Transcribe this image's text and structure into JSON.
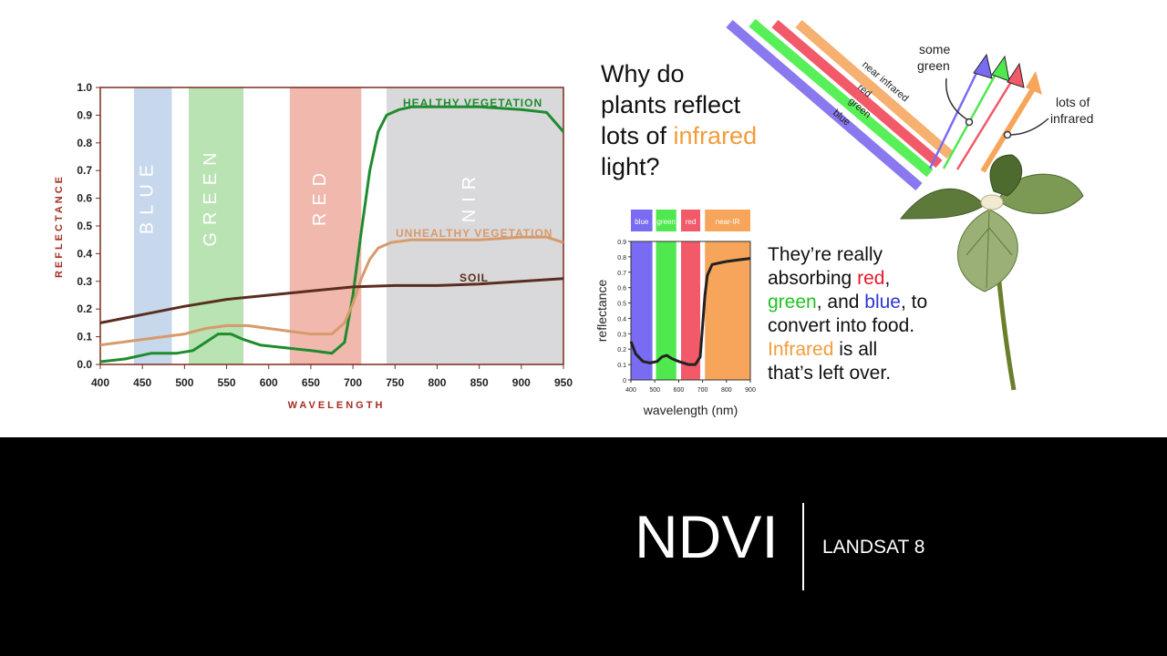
{
  "slide": {
    "title": "NDVI",
    "subtitle": "LANDSAT 8"
  },
  "question": {
    "line1": "Why do",
    "line2": "plants reflect",
    "line3_prefix": "lots of ",
    "line3_highlight": "infrared",
    "line4": "light?"
  },
  "answer": {
    "line1": "They’re really",
    "line2_prefix": "absorbing ",
    "line2_red": "red",
    "line2_suffix": ",",
    "line3_green": "green",
    "line3_mid": ", and ",
    "line3_blue": "blue",
    "line3_suffix": ", to",
    "line4": "convert into food.",
    "line5_infrared": "Infrared",
    "line5_suffix": " is all",
    "line6": "that’s left over."
  },
  "illustration": {
    "beam_labels": [
      "blue",
      "green",
      "red",
      "near infrared"
    ],
    "label_some_green": [
      "some",
      "green"
    ],
    "label_lots_infrared": [
      "lots of",
      "infrared"
    ]
  },
  "colors": {
    "blue_band": "#c7d8ec",
    "green_band": "#b9e3b3",
    "red_band": "#f1b8ad",
    "nir_band": "#d9d9db",
    "healthy": "#1e8c2e",
    "unhealthy": "#d79a6b",
    "soil": "#5a2e1e",
    "axis": "#7a2a1e",
    "label_red": "#a32e20",
    "infrared_orange": "#f39c3a",
    "red_word": "#e8192c",
    "green_word": "#22c322",
    "blue_word": "#2b35d8"
  },
  "chart_data": [
    {
      "type": "line",
      "title": "",
      "xlabel": "WAVELENGTH",
      "ylabel": "REFLECTANCE",
      "xlim": [
        400,
        950
      ],
      "ylim": [
        0,
        1.0
      ],
      "x_ticks": [
        400,
        450,
        500,
        550,
        600,
        650,
        700,
        750,
        800,
        850,
        900,
        950
      ],
      "y_ticks": [
        0.0,
        0.1,
        0.2,
        0.3,
        0.4,
        0.5,
        0.6,
        0.7,
        0.8,
        0.9,
        1.0
      ],
      "y_tick_labels": [
        "0.0",
        "0.1",
        "0.2",
        "0.3",
        "0.4",
        "0.5",
        "0.6",
        "0.7",
        "0.8",
        "0.9",
        "1.0"
      ],
      "bands": [
        {
          "label": "BLUE",
          "range": [
            440,
            485
          ],
          "color": "#c7d8ec"
        },
        {
          "label": "GREEN",
          "range": [
            505,
            570
          ],
          "color": "#b9e3b3"
        },
        {
          "label": "RED",
          "range": [
            625,
            710
          ],
          "color": "#f1b8ad"
        },
        {
          "label": "NIR",
          "range": [
            740,
            950
          ],
          "color": "#d9d9db"
        }
      ],
      "series": [
        {
          "name": "HEALTHY VEGETATION",
          "color": "#1e8c2e",
          "x": [
            400,
            430,
            460,
            490,
            510,
            525,
            540,
            555,
            570,
            590,
            620,
            650,
            675,
            690,
            700,
            710,
            720,
            730,
            740,
            755,
            770,
            800,
            850,
            900,
            930,
            950
          ],
          "y": [
            0.01,
            0.02,
            0.04,
            0.04,
            0.05,
            0.08,
            0.11,
            0.11,
            0.09,
            0.07,
            0.06,
            0.05,
            0.04,
            0.08,
            0.25,
            0.48,
            0.7,
            0.84,
            0.9,
            0.92,
            0.93,
            0.93,
            0.93,
            0.92,
            0.91,
            0.84
          ]
        },
        {
          "name": "UNHEALTHY VEGETATION",
          "color": "#d79a6b",
          "x": [
            400,
            450,
            500,
            525,
            550,
            575,
            600,
            650,
            675,
            690,
            700,
            710,
            720,
            730,
            745,
            770,
            800,
            850,
            900,
            930,
            950
          ],
          "y": [
            0.07,
            0.09,
            0.11,
            0.13,
            0.14,
            0.14,
            0.13,
            0.11,
            0.11,
            0.15,
            0.22,
            0.31,
            0.38,
            0.42,
            0.44,
            0.45,
            0.45,
            0.45,
            0.46,
            0.46,
            0.44
          ]
        },
        {
          "name": "SOIL",
          "color": "#5a2e1e",
          "x": [
            400,
            450,
            500,
            550,
            600,
            650,
            700,
            750,
            800,
            850,
            900,
            950
          ],
          "y": [
            0.15,
            0.18,
            0.21,
            0.235,
            0.25,
            0.265,
            0.28,
            0.285,
            0.285,
            0.29,
            0.3,
            0.31
          ]
        }
      ],
      "series_label_positions": [
        "top",
        "right",
        "middle"
      ]
    },
    {
      "type": "line",
      "title": "",
      "xlabel": "wavelength (nm)",
      "ylabel": "reflectance",
      "xlim": [
        400,
        900
      ],
      "ylim": [
        0,
        0.9
      ],
      "x_ticks": [
        400,
        500,
        600,
        700,
        800,
        900
      ],
      "y_ticks": [
        0,
        0.1,
        0.2,
        0.3,
        0.4,
        0.5,
        0.6,
        0.7,
        0.8,
        0.9
      ],
      "y_tick_labels": [
        "0",
        "0.1",
        "0.2",
        "0.3",
        "0.4",
        "0.5",
        "0.6",
        "0.7",
        "0.8",
        "0.9"
      ],
      "bands": [
        {
          "label": "blue",
          "range": [
            400,
            490
          ],
          "color": "#7a6cf2"
        },
        {
          "label": "green",
          "range": [
            505,
            590
          ],
          "color": "#4fe84f"
        },
        {
          "label": "red",
          "range": [
            610,
            690
          ],
          "color": "#f25a6a"
        },
        {
          "label": "near-IR",
          "range": [
            710,
            900
          ],
          "color": "#f6a55a"
        }
      ],
      "series": [
        {
          "color": "#222222",
          "x": [
            400,
            420,
            450,
            480,
            510,
            530,
            550,
            570,
            600,
            640,
            670,
            690,
            700,
            710,
            720,
            740,
            770,
            800,
            850,
            900
          ],
          "y": [
            0.25,
            0.17,
            0.12,
            0.11,
            0.12,
            0.15,
            0.16,
            0.14,
            0.12,
            0.1,
            0.1,
            0.15,
            0.35,
            0.55,
            0.68,
            0.75,
            0.76,
            0.77,
            0.78,
            0.79
          ]
        }
      ]
    }
  ]
}
